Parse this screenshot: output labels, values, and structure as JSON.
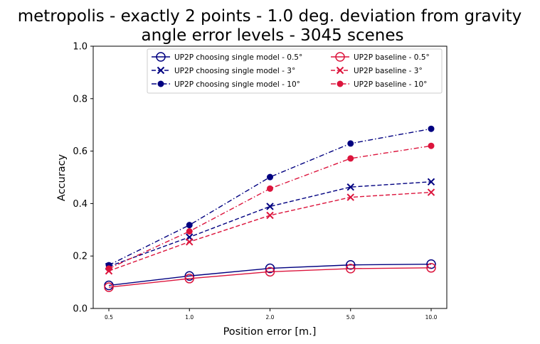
{
  "chart_data": {
    "type": "line",
    "title_line1": "metropolis - exactly 2 points - 1.0 deg. deviation from gravity",
    "title_line2": "angle error levels - 3045 scenes",
    "xlabel": "Position error [m.]",
    "ylabel": "Accuracy",
    "categories": [
      "0.5",
      "1.0",
      "2.0",
      "5.0",
      "10.0"
    ],
    "yticks": [
      "0.0",
      "0.2",
      "0.4",
      "0.6",
      "0.8",
      "1.0"
    ],
    "ylim": [
      0,
      1
    ],
    "grid": false,
    "legend_placement": "top-right",
    "colors": {
      "navy": "#000080",
      "crimson": "#dc143c"
    },
    "series": [
      {
        "name": "UP2P choosing single model - 0.5°",
        "color": "#000080",
        "dash": "solid",
        "marker": "open-circle",
        "values": [
          0.088,
          0.124,
          0.153,
          0.166,
          0.169
        ]
      },
      {
        "name": "UP2P choosing single model - 3°",
        "color": "#000080",
        "dash": "dashed",
        "marker": "x",
        "values": [
          0.16,
          0.272,
          0.389,
          0.463,
          0.483
        ]
      },
      {
        "name": "UP2P choosing single model - 10°",
        "color": "#000080",
        "dash": "dashdot",
        "marker": "dot",
        "values": [
          0.165,
          0.318,
          0.501,
          0.629,
          0.685
        ]
      },
      {
        "name": "UP2P baseline - 0.5°",
        "color": "#dc143c",
        "dash": "solid",
        "marker": "open-circle",
        "values": [
          0.081,
          0.114,
          0.14,
          0.152,
          0.155
        ]
      },
      {
        "name": "UP2P baseline - 3°",
        "color": "#dc143c",
        "dash": "dashed",
        "marker": "x",
        "values": [
          0.143,
          0.254,
          0.355,
          0.424,
          0.443
        ]
      },
      {
        "name": "UP2P baseline - 10°",
        "color": "#dc143c",
        "dash": "dashdot",
        "marker": "dot",
        "values": [
          0.152,
          0.294,
          0.457,
          0.572,
          0.62
        ]
      }
    ]
  }
}
